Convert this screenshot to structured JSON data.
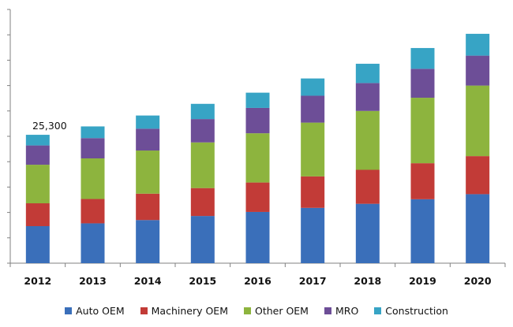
{
  "chart_data": {
    "type": "bar",
    "stacked": true,
    "categories": [
      "2012",
      "2013",
      "2014",
      "2015",
      "2016",
      "2017",
      "2018",
      "2019",
      "2020"
    ],
    "series": [
      {
        "name": "Auto OEM",
        "color": "#3a6fba",
        "values": [
          7300,
          7850,
          8500,
          9300,
          10100,
          10900,
          11700,
          12600,
          13600
        ]
      },
      {
        "name": "Machinery OEM",
        "color": "#c23b37",
        "values": [
          4500,
          4800,
          5200,
          5500,
          5800,
          6200,
          6700,
          7100,
          7500
        ]
      },
      {
        "name": "Other OEM",
        "color": "#8db43e",
        "values": [
          7600,
          8000,
          8500,
          9000,
          9700,
          10600,
          11600,
          12900,
          13900
        ]
      },
      {
        "name": "MRO",
        "color": "#6d4e97",
        "values": [
          3800,
          4000,
          4300,
          4600,
          5000,
          5300,
          5500,
          5700,
          5900
        ]
      },
      {
        "name": "Construction",
        "color": "#37a4c5",
        "values": [
          2100,
          2300,
          2600,
          3000,
          3000,
          3400,
          3800,
          4100,
          4300
        ]
      }
    ],
    "annotations": [
      {
        "category": "2012",
        "text": "25,300"
      }
    ],
    "ylim": [
      0,
      50000
    ],
    "y_tick_step": 5000,
    "y_tick_labels_shown": false,
    "grid": false,
    "legend_position": "bottom"
  }
}
